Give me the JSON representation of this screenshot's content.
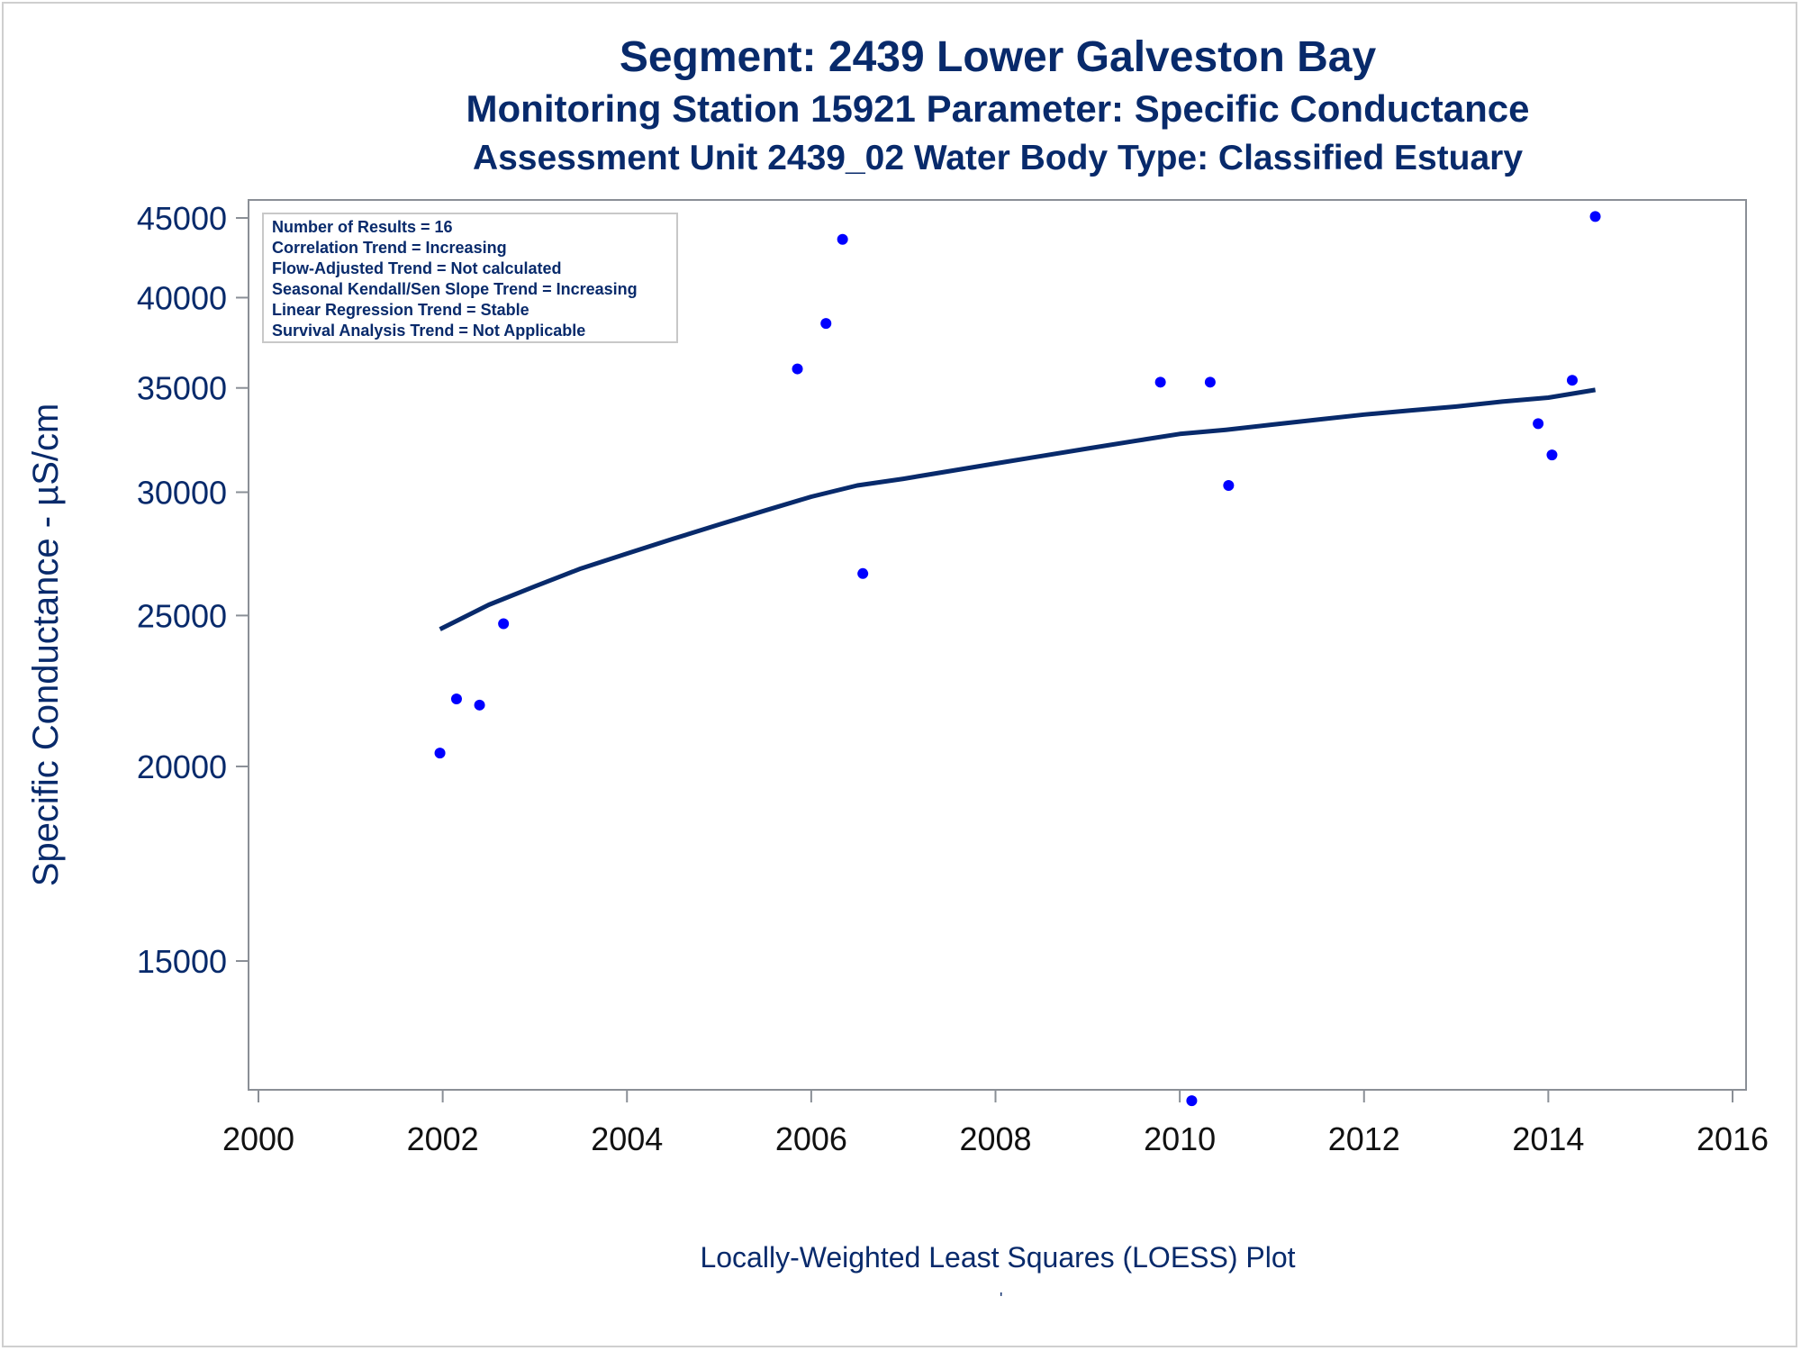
{
  "titles": {
    "line1": "Segment: 2439  Lower Galveston Bay",
    "line2": "Monitoring Station 15921 Parameter: Specific Conductance",
    "line3": "Assessment Unit 2439_02   Water Body Type: Classified Estuary"
  },
  "footnote": "Locally-Weighted Least Squares (LOESS) Plot",
  "stray_mark": "'",
  "colors": {
    "text": "#082a6b",
    "points": "#0000ff",
    "line": "#082a6b",
    "axis": "#8a8f96"
  },
  "chart_data": {
    "type": "scatter",
    "title": "",
    "xlabel": "",
    "ylabel": "Specific Conductance -  µS/cm",
    "xlim": [
      2000,
      2016
    ],
    "ylim": [
      12100,
      45600
    ],
    "y_scale": "log",
    "x_ticks": [
      2000,
      2002,
      2004,
      2006,
      2008,
      2010,
      2012,
      2014,
      2016
    ],
    "y_ticks": [
      15000,
      20000,
      25000,
      30000,
      35000,
      40000,
      45000
    ],
    "grid": false,
    "legend_placement": "top-left",
    "stats_box": [
      "Number of Results = 16",
      "Correlation Trend = Increasing",
      "Flow-Adjusted Trend = Not calculated",
      "Seasonal Kendall/Sen Slope Trend = Increasing",
      "Linear Regression Trend = Stable",
      "Survival Analysis Trend = Not Applicable"
    ],
    "series": [
      {
        "kind": "points",
        "x": [
          2001.97,
          2002.15,
          2002.4,
          2002.66,
          2005.85,
          2006.16,
          2006.34,
          2006.56,
          2009.79,
          2010.13,
          2010.33,
          2010.53,
          2013.89,
          2014.04,
          2014.26,
          2014.51
        ],
        "y": [
          20400,
          22100,
          21900,
          24700,
          36000,
          38500,
          43600,
          26600,
          35300,
          12200,
          35300,
          30300,
          33200,
          31700,
          35400,
          45100
        ]
      },
      {
        "kind": "loess_line",
        "x": [
          2001.97,
          2002.5,
          2003.0,
          2003.5,
          2004.0,
          2004.5,
          2005.0,
          2005.5,
          2006.0,
          2006.5,
          2007.0,
          2007.5,
          2008.0,
          2008.5,
          2009.0,
          2009.5,
          2010.0,
          2010.5,
          2011.0,
          2011.5,
          2012.0,
          2012.5,
          2013.0,
          2013.5,
          2014.0,
          2014.51
        ],
        "y": [
          24500,
          25400,
          26100,
          26800,
          27400,
          28000,
          28600,
          29200,
          29800,
          30300,
          30600,
          30950,
          31300,
          31650,
          32000,
          32350,
          32700,
          32900,
          33150,
          33400,
          33650,
          33850,
          34050,
          34300,
          34500,
          34900
        ]
      }
    ]
  }
}
